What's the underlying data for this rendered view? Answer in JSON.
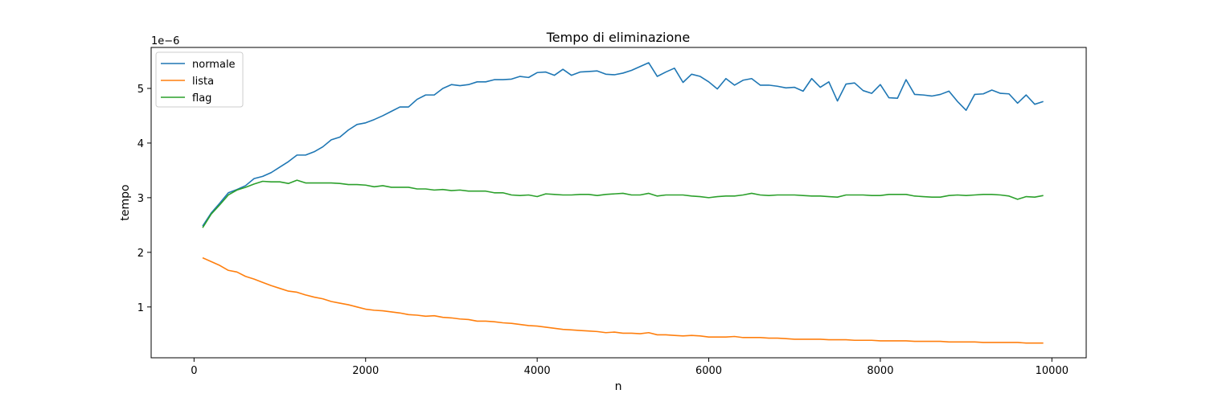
{
  "chart_data": {
    "type": "line",
    "title": "Tempo di eliminazione",
    "xlabel": "n",
    "ylabel": "tempo",
    "offset_label": "1e−6",
    "xlim": [
      -500,
      10400
    ],
    "ylim": [
      0.07,
      5.75
    ],
    "x_ticks": [
      0,
      2000,
      4000,
      6000,
      8000,
      10000
    ],
    "x_tick_labels": [
      "0",
      "2000",
      "4000",
      "6000",
      "8000",
      "10000"
    ],
    "y_ticks": [
      1,
      2,
      3,
      4,
      5
    ],
    "y_tick_labels": [
      "1",
      "2",
      "3",
      "4",
      "5"
    ],
    "grid": false,
    "legend_position": "upper-left",
    "x": [
      100,
      200,
      300,
      400,
      500,
      600,
      700,
      800,
      900,
      1000,
      1100,
      1200,
      1300,
      1400,
      1500,
      1600,
      1700,
      1800,
      1900,
      2000,
      2100,
      2200,
      2300,
      2400,
      2500,
      2600,
      2700,
      2800,
      2900,
      3000,
      3100,
      3200,
      3300,
      3400,
      3500,
      3600,
      3700,
      3800,
      3900,
      4000,
      4100,
      4200,
      4300,
      4400,
      4500,
      4600,
      4700,
      4800,
      4900,
      5000,
      5100,
      5200,
      5300,
      5400,
      5500,
      5600,
      5700,
      5800,
      5900,
      6000,
      6100,
      6200,
      6300,
      6400,
      6500,
      6600,
      6700,
      6800,
      6900,
      7000,
      7100,
      7200,
      7300,
      7400,
      7500,
      7600,
      7700,
      7800,
      7900,
      8000,
      8100,
      8200,
      8300,
      8400,
      8500,
      8600,
      8700,
      8800,
      8900,
      9000,
      9100,
      9200,
      9300,
      9400,
      9500,
      9600,
      9700,
      9800,
      9900
    ],
    "series": [
      {
        "name": "normale",
        "color": "#1f77b4",
        "values": [
          2.48,
          2.72,
          2.9,
          3.09,
          3.15,
          3.22,
          3.35,
          3.39,
          3.46,
          3.56,
          3.66,
          3.78,
          3.78,
          3.84,
          3.93,
          4.06,
          4.11,
          4.24,
          4.34,
          4.37,
          4.43,
          4.5,
          4.58,
          4.66,
          4.66,
          4.8,
          4.88,
          4.88,
          5.0,
          5.07,
          5.05,
          5.07,
          5.12,
          5.12,
          5.16,
          5.16,
          5.17,
          5.22,
          5.2,
          5.29,
          5.3,
          5.24,
          5.35,
          5.24,
          5.3,
          5.31,
          5.32,
          5.26,
          5.25,
          5.28,
          5.33,
          5.4,
          5.47,
          5.22,
          5.3,
          5.37,
          5.11,
          5.26,
          5.22,
          5.12,
          4.99,
          5.18,
          5.06,
          5.15,
          5.18,
          5.06,
          5.06,
          5.04,
          5.01,
          5.02,
          4.95,
          5.18,
          5.02,
          5.12,
          4.77,
          5.08,
          5.1,
          4.96,
          4.91,
          5.07,
          4.83,
          4.82,
          5.16,
          4.89,
          4.88,
          4.86,
          4.89,
          4.95,
          4.76,
          4.6,
          4.89,
          4.9,
          4.97,
          4.91,
          4.9,
          4.73,
          4.88,
          4.71,
          4.76
        ]
      },
      {
        "name": "lista",
        "color": "#ff7f0e",
        "values": [
          1.9,
          1.83,
          1.76,
          1.67,
          1.64,
          1.56,
          1.51,
          1.45,
          1.39,
          1.34,
          1.29,
          1.27,
          1.22,
          1.18,
          1.15,
          1.1,
          1.07,
          1.04,
          1.0,
          0.96,
          0.94,
          0.93,
          0.91,
          0.89,
          0.86,
          0.85,
          0.83,
          0.84,
          0.81,
          0.8,
          0.78,
          0.77,
          0.74,
          0.74,
          0.73,
          0.71,
          0.7,
          0.68,
          0.66,
          0.65,
          0.63,
          0.61,
          0.59,
          0.58,
          0.57,
          0.56,
          0.55,
          0.53,
          0.54,
          0.52,
          0.52,
          0.51,
          0.53,
          0.49,
          0.49,
          0.48,
          0.47,
          0.48,
          0.47,
          0.45,
          0.45,
          0.45,
          0.46,
          0.44,
          0.44,
          0.44,
          0.43,
          0.43,
          0.42,
          0.41,
          0.41,
          0.41,
          0.41,
          0.4,
          0.4,
          0.4,
          0.39,
          0.39,
          0.39,
          0.38,
          0.38,
          0.38,
          0.38,
          0.37,
          0.37,
          0.37,
          0.37,
          0.36,
          0.36,
          0.36,
          0.36,
          0.35,
          0.35,
          0.35,
          0.35,
          0.35,
          0.34,
          0.34,
          0.34
        ]
      },
      {
        "name": "flag",
        "color": "#2ca02c",
        "values": [
          2.45,
          2.7,
          2.87,
          3.05,
          3.14,
          3.19,
          3.25,
          3.3,
          3.29,
          3.29,
          3.26,
          3.32,
          3.27,
          3.27,
          3.27,
          3.27,
          3.26,
          3.24,
          3.24,
          3.23,
          3.2,
          3.22,
          3.19,
          3.19,
          3.19,
          3.16,
          3.16,
          3.14,
          3.15,
          3.13,
          3.14,
          3.12,
          3.12,
          3.12,
          3.09,
          3.09,
          3.05,
          3.04,
          3.05,
          3.02,
          3.07,
          3.06,
          3.05,
          3.05,
          3.06,
          3.06,
          3.04,
          3.06,
          3.07,
          3.08,
          3.05,
          3.05,
          3.08,
          3.03,
          3.05,
          3.05,
          3.05,
          3.03,
          3.02,
          3.0,
          3.02,
          3.03,
          3.03,
          3.05,
          3.08,
          3.05,
          3.04,
          3.05,
          3.05,
          3.05,
          3.04,
          3.03,
          3.03,
          3.02,
          3.01,
          3.05,
          3.05,
          3.05,
          3.04,
          3.04,
          3.06,
          3.06,
          3.06,
          3.03,
          3.02,
          3.01,
          3.01,
          3.04,
          3.05,
          3.04,
          3.05,
          3.06,
          3.06,
          3.05,
          3.03,
          2.97,
          3.02,
          3.01,
          3.04
        ]
      }
    ]
  }
}
